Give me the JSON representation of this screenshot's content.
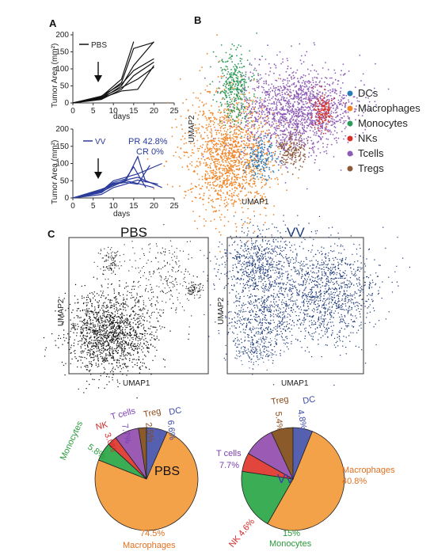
{
  "panels": {
    "a": "A",
    "b": "B",
    "c": "C"
  },
  "panel_a": {
    "top": {
      "legend_label": "PBS",
      "ylabel": "Tumor Area (mm²)",
      "xlabel": "days",
      "xticks": [
        "0",
        "5",
        "10",
        "15",
        "20",
        "25"
      ],
      "yticks": [
        "0",
        "50",
        "100",
        "150",
        "200"
      ],
      "line_color": "#111111"
    },
    "bottom": {
      "legend_label": "VV",
      "ylabel": "Tumor Area (mm²)",
      "xlabel": "days",
      "xticks": [
        "0",
        "5",
        "10",
        "15",
        "20",
        "25"
      ],
      "yticks": [
        "0",
        "50",
        "100",
        "150",
        "200"
      ],
      "annotation_pr": "PR 42.8%",
      "annotation_cr": "CR 0%",
      "line_color": "#2a3a9a"
    }
  },
  "panel_b": {
    "xlabel": "UMAP1",
    "ylabel": "UMAP2",
    "legend": [
      {
        "label": "DCs",
        "color": "#2b7bb9"
      },
      {
        "label": "Macrophages",
        "color": "#f0862a"
      },
      {
        "label": "Monocytes",
        "color": "#2e9b5a"
      },
      {
        "label": "NKs",
        "color": "#d7302a"
      },
      {
        "label": "Tcells",
        "color": "#8e5bb5"
      },
      {
        "label": "Tregs",
        "color": "#8c5a3c"
      }
    ]
  },
  "panel_c": {
    "pbs_title": "PBS",
    "vv_title": "VV",
    "pbs_color": "#111111",
    "vv_color": "#1f3b7a",
    "xlabel": "UMAP1",
    "ylabel": "UMAP2",
    "pie_pbs_center": "PBS",
    "pie_vv_center": "VV",
    "pie_pbs_labels": {
      "tcells": "T cells",
      "tcells_pct": "7.7%",
      "treg": "Treg",
      "treg_pct": "2.5%",
      "dc": "DC",
      "dc_pct": "6.6%",
      "nk": "NK",
      "nk_pct": "3.0%",
      "mono": "Monocytes",
      "mono_pct": "5.8%",
      "mac_pct": "74.5%",
      "mac": "Macrophages"
    },
    "pie_vv_labels": {
      "treg": "Treg",
      "treg_pct": "5.4%",
      "dc": "DC",
      "dc_pct": "4.8%",
      "tcells": "T cells",
      "tcells_pct": "7.7%",
      "mac": "Macrophages",
      "mac_pct": "40.8%",
      "mono_pct": "15%",
      "mono": "Monocytes",
      "nk": "NK 4.6%"
    }
  },
  "chart_data": [
    {
      "type": "line",
      "xlabel": "days",
      "ylabel": "Tumor Area (mm²)",
      "xlim": [
        0,
        25
      ],
      "ylim": [
        0,
        200
      ],
      "series": [
        {
          "name": "PBS",
          "values": [
            [
              0,
              0
            ],
            [
              7,
              15
            ],
            [
              12,
              60
            ],
            [
              15,
              160
            ],
            [
              20,
              178
            ]
          ]
        },
        {
          "name": "PBS",
          "values": [
            [
              0,
              0
            ],
            [
              7,
              18
            ],
            [
              12,
              70
            ],
            [
              15,
              180
            ]
          ]
        },
        {
          "name": "PBS",
          "values": [
            [
              0,
              0
            ],
            [
              7,
              12
            ],
            [
              12,
              50
            ],
            [
              15,
              110
            ],
            [
              20,
              180
            ]
          ]
        },
        {
          "name": "PBS",
          "values": [
            [
              0,
              0
            ],
            [
              7,
              20
            ],
            [
              12,
              55
            ],
            [
              15,
              95
            ],
            [
              20,
              130
            ]
          ]
        },
        {
          "name": "PBS",
          "values": [
            [
              0,
              0
            ],
            [
              7,
              10
            ],
            [
              12,
              40
            ],
            [
              15,
              80
            ],
            [
              20,
              120
            ]
          ]
        },
        {
          "name": "PBS",
          "values": [
            [
              0,
              0
            ],
            [
              7,
              16
            ],
            [
              12,
              45
            ],
            [
              16,
              70
            ],
            [
              20,
              105
            ]
          ]
        },
        {
          "name": "PBS",
          "values": [
            [
              0,
              0
            ],
            [
              7,
              14
            ],
            [
              12,
              35
            ],
            [
              16,
              40
            ],
            [
              20,
              110
            ]
          ]
        }
      ]
    },
    {
      "type": "line",
      "xlabel": "days",
      "ylabel": "Tumor Area (mm²)",
      "xlim": [
        0,
        25
      ],
      "ylim": [
        0,
        200
      ],
      "series": [
        {
          "name": "VV",
          "values": [
            [
              0,
              0
            ],
            [
              7,
              20
            ],
            [
              10,
              42
            ],
            [
              13,
              48
            ],
            [
              16,
              120
            ],
            [
              18,
              45
            ]
          ]
        },
        {
          "name": "VV",
          "values": [
            [
              0,
              0
            ],
            [
              7,
              22
            ],
            [
              10,
              45
            ],
            [
              13,
              55
            ],
            [
              15,
              90
            ],
            [
              18,
              30
            ]
          ]
        },
        {
          "name": "VV",
          "values": [
            [
              0,
              0
            ],
            [
              7,
              15
            ],
            [
              10,
              40
            ],
            [
              13,
              45
            ],
            [
              16,
              40
            ],
            [
              19,
              95
            ]
          ]
        },
        {
          "name": "VV",
          "values": [
            [
              0,
              0
            ],
            [
              7,
              18
            ],
            [
              10,
              35
            ],
            [
              13,
              50
            ],
            [
              16,
              42
            ],
            [
              20,
              30
            ]
          ]
        },
        {
          "name": "VV",
          "values": [
            [
              0,
              0
            ],
            [
              7,
              25
            ],
            [
              10,
              38
            ],
            [
              13,
              52
            ],
            [
              16,
              60
            ],
            [
              22,
              30
            ]
          ]
        },
        {
          "name": "VV",
          "values": [
            [
              0,
              0
            ],
            [
              7,
              10
            ],
            [
              10,
              30
            ],
            [
              13,
              40
            ],
            [
              16,
              52
            ],
            [
              21,
              40
            ]
          ]
        },
        {
          "name": "VV",
          "values": [
            [
              0,
              0
            ],
            [
              7,
              20
            ],
            [
              10,
              50
            ],
            [
              13,
              60
            ],
            [
              16,
              70
            ],
            [
              22,
              100
            ]
          ]
        }
      ]
    },
    {
      "type": "pie",
      "categories": [
        "DC",
        "Macrophages",
        "Monocytes",
        "NK",
        "T cells",
        "Treg"
      ],
      "values": [
        6.6,
        74.5,
        5.8,
        3.0,
        7.7,
        2.5
      ],
      "colors": [
        "#5560b0",
        "#f4a24a",
        "#3aad55",
        "#e2453b",
        "#9b5bb5",
        "#8a5a2a"
      ]
    },
    {
      "type": "pie",
      "categories": [
        "DC",
        "Macrophages",
        "Monocytes",
        "NK",
        "T cells",
        "Treg"
      ],
      "values": [
        4.8,
        40.8,
        15,
        4.6,
        7.7,
        5.4
      ],
      "colors": [
        "#5560b0",
        "#f4a24a",
        "#3aad55",
        "#e2453b",
        "#9b5bb5",
        "#8a5a2a"
      ]
    }
  ]
}
